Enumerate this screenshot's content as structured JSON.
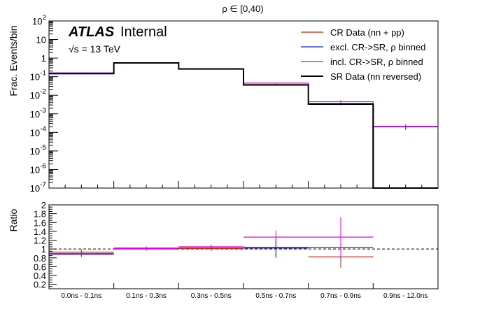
{
  "chart_data": [
    {
      "type": "line",
      "title": "ρ ∈ [0,40)",
      "ylabel": "Frac. Events/bin",
      "yscale": "log",
      "ylim": [
        1e-07,
        100
      ],
      "y_ticks": [
        {
          "value": 1e-07,
          "base": "10",
          "exp": "-7"
        },
        {
          "value": 1e-06,
          "base": "10",
          "exp": "-6"
        },
        {
          "value": 1e-05,
          "base": "10",
          "exp": "-5"
        },
        {
          "value": 0.0001,
          "base": "10",
          "exp": "-4"
        },
        {
          "value": 0.001,
          "base": "10",
          "exp": "-3"
        },
        {
          "value": 0.01,
          "base": "10",
          "exp": "-2"
        },
        {
          "value": 0.1,
          "base": "10",
          "exp": "-1"
        },
        {
          "value": 1,
          "base": "1",
          "exp": ""
        },
        {
          "value": 10,
          "base": "10",
          "exp": ""
        },
        {
          "value": 100,
          "base": "10",
          "exp": "2"
        }
      ],
      "atlas": {
        "bold": "ATLAS",
        "rest": "Internal",
        "energy_root": "√s",
        "energy_rest": " = 13 TeV"
      },
      "categories": [
        "0.0ns - 0.1ns",
        "0.1ns - 0.3ns",
        "0.3ns - 0.5ns",
        "0.5ns - 0.7ns",
        "0.7ns - 0.9ns",
        "0.9ns - 12.0ns"
      ],
      "legend_position": "top-right",
      "series": [
        {
          "name": "CR Data (nn + pp)",
          "color": "#cc2200",
          "values": [
            0.15,
            0.55,
            0.26,
            0.038,
            0.0035,
            0.0002
          ],
          "errors_rel": [
            0.05,
            0.05,
            0.05,
            0.08,
            0.2,
            0.3
          ]
        },
        {
          "name": "excl. CR->SR, ρ binned",
          "color": "#1f1fd6",
          "values": [
            0.14,
            0.56,
            0.27,
            0.037,
            0.0036,
            0.0002
          ],
          "errors_rel": [
            0.05,
            0.05,
            0.05,
            0.08,
            0.2,
            0.3
          ]
        },
        {
          "name": "incl. CR->SR, ρ binned",
          "color": "#e000e0",
          "values": [
            0.16,
            0.57,
            0.27,
            0.045,
            0.0045,
            0.00021
          ],
          "errors_rel": [
            0.05,
            0.05,
            0.05,
            0.08,
            0.2,
            0.3
          ]
        },
        {
          "name": "SR Data (nn reversed)",
          "color": "#000000",
          "values": [
            0.15,
            0.55,
            0.26,
            0.036,
            0.0033,
            1e-09
          ],
          "errors_rel": [
            0.03,
            0.03,
            0.03,
            0.05,
            0.12,
            0.0
          ]
        }
      ]
    },
    {
      "type": "line",
      "ylabel": "Ratio",
      "ylim": [
        0.1,
        2.0
      ],
      "y_ticks": [
        "0.2",
        "0.4",
        "0.6",
        "0.8",
        "1",
        "1.2",
        "1.4",
        "1.6",
        "1.8",
        "2"
      ],
      "reference_line": 1.0,
      "categories": [
        "0.0ns - 0.1ns",
        "0.1ns - 0.3ns",
        "0.3ns - 0.5ns",
        "0.5ns - 0.7ns",
        "0.7ns - 0.9ns",
        "0.9ns - 12.0ns"
      ],
      "series": [
        {
          "name": "CR Data (nn + pp)",
          "color": "#cc2200",
          "values": [
            0.93,
            1.0,
            1.01,
            1.04,
            0.82,
            null
          ],
          "errors": [
            0.06,
            0.04,
            0.05,
            0.25,
            0.25,
            null
          ]
        },
        {
          "name": "excl. CR->SR, ρ binned",
          "color": "#1f1fd6",
          "values": [
            0.88,
            1.02,
            1.04,
            1.02,
            1.03,
            null
          ],
          "errors": [
            0.06,
            0.04,
            0.05,
            0.2,
            0.3,
            null
          ]
        },
        {
          "name": "incl. CR->SR, ρ binned",
          "color": "#e000e0",
          "values": [
            0.9,
            1.01,
            1.05,
            1.27,
            1.27,
            null
          ],
          "errors": [
            0.06,
            0.04,
            0.05,
            0.15,
            0.45,
            null
          ]
        }
      ]
    }
  ]
}
